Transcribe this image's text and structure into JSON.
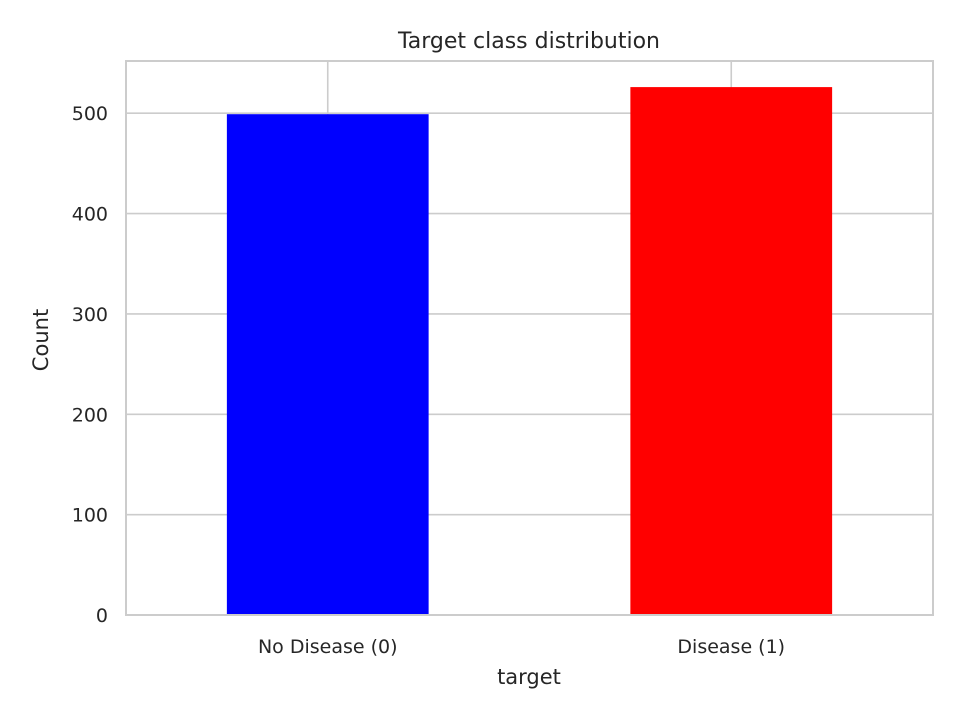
{
  "chart_data": {
    "type": "bar",
    "title": "Target class distribution",
    "xlabel": "target",
    "ylabel": "Count",
    "categories": [
      "No Disease (0)",
      "Disease (1)"
    ],
    "values": [
      499,
      526
    ],
    "colors": [
      "#0000ff",
      "#ff0000"
    ],
    "ylim": [
      0,
      552
    ],
    "yticks": [
      0,
      100,
      200,
      300,
      400,
      500
    ],
    "grid": true,
    "legend": "none"
  }
}
